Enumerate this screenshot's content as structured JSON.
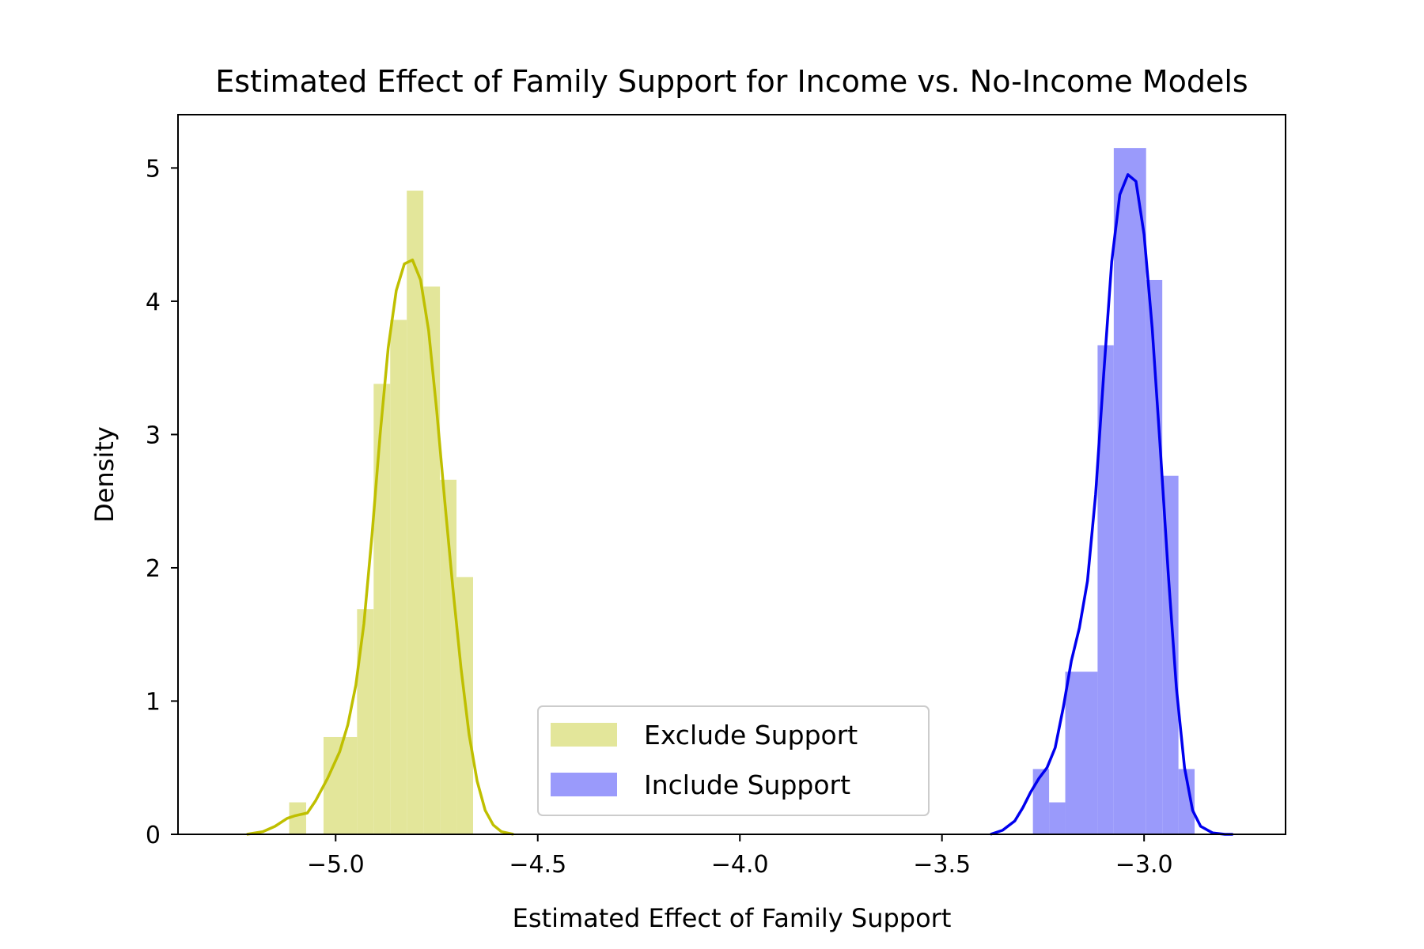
{
  "chart_data": {
    "type": "histogram",
    "title": "Estimated Effect of Family Support for Income vs. No-Income Models",
    "xlabel": "Estimated Effect of Family Support",
    "ylabel": "Density",
    "xlim": [
      -5.39,
      -2.65
    ],
    "ylim": [
      0,
      5.4
    ],
    "x_ticks": [
      {
        "value": -5.0,
        "label": "−5.0"
      },
      {
        "value": -4.5,
        "label": "−4.5"
      },
      {
        "value": -4.0,
        "label": "−4.0"
      },
      {
        "value": -3.5,
        "label": "−3.5"
      },
      {
        "value": -3.0,
        "label": "−3.0"
      }
    ],
    "y_ticks": [
      {
        "value": 0,
        "label": "0"
      },
      {
        "value": 1,
        "label": "1"
      },
      {
        "value": 2,
        "label": "2"
      },
      {
        "value": 3,
        "label": "3"
      },
      {
        "value": 4,
        "label": "4"
      },
      {
        "value": 5,
        "label": "5"
      }
    ],
    "grid": false,
    "legend_position": "bottom-center",
    "series": [
      {
        "name": "Exclude Support",
        "bar_color": "#e3e69a",
        "line_color": "#bfbf00",
        "bins": [
          {
            "x0": -5.115,
            "x1": -5.073,
            "density": 0.24
          },
          {
            "x0": -5.073,
            "x1": -5.03,
            "density": 0.0
          },
          {
            "x0": -5.03,
            "x1": -4.947,
            "density": 0.73
          },
          {
            "x0": -4.947,
            "x1": -4.906,
            "density": 1.69
          },
          {
            "x0": -4.906,
            "x1": -4.865,
            "density": 3.38
          },
          {
            "x0": -4.865,
            "x1": -4.824,
            "density": 3.86
          },
          {
            "x0": -4.824,
            "x1": -4.783,
            "density": 4.83
          },
          {
            "x0": -4.783,
            "x1": -4.742,
            "density": 4.11
          },
          {
            "x0": -4.742,
            "x1": -4.701,
            "density": 2.66
          },
          {
            "x0": -4.701,
            "x1": -4.66,
            "density": 1.93
          }
        ],
        "kde": [
          [
            -5.22,
            0.0
          ],
          [
            -5.18,
            0.02
          ],
          [
            -5.15,
            0.06
          ],
          [
            -5.12,
            0.12
          ],
          [
            -5.1,
            0.14
          ],
          [
            -5.07,
            0.16
          ],
          [
            -5.05,
            0.25
          ],
          [
            -5.02,
            0.42
          ],
          [
            -4.99,
            0.62
          ],
          [
            -4.97,
            0.82
          ],
          [
            -4.95,
            1.12
          ],
          [
            -4.93,
            1.58
          ],
          [
            -4.91,
            2.25
          ],
          [
            -4.89,
            3.0
          ],
          [
            -4.87,
            3.65
          ],
          [
            -4.85,
            4.08
          ],
          [
            -4.83,
            4.28
          ],
          [
            -4.81,
            4.31
          ],
          [
            -4.79,
            4.16
          ],
          [
            -4.77,
            3.78
          ],
          [
            -4.75,
            3.18
          ],
          [
            -4.73,
            2.5
          ],
          [
            -4.71,
            1.85
          ],
          [
            -4.69,
            1.25
          ],
          [
            -4.67,
            0.75
          ],
          [
            -4.65,
            0.4
          ],
          [
            -4.63,
            0.18
          ],
          [
            -4.61,
            0.07
          ],
          [
            -4.59,
            0.02
          ],
          [
            -4.56,
            0.0
          ]
        ]
      },
      {
        "name": "Include Support",
        "bar_color": "#9a9afb",
        "line_color": "#0000ee",
        "bins": [
          {
            "x0": -3.275,
            "x1": -3.235,
            "density": 0.49
          },
          {
            "x0": -3.235,
            "x1": -3.195,
            "density": 0.24
          },
          {
            "x0": -3.195,
            "x1": -3.115,
            "density": 1.22
          },
          {
            "x0": -3.115,
            "x1": -3.075,
            "density": 3.67
          },
          {
            "x0": -3.075,
            "x1": -2.995,
            "density": 5.15
          },
          {
            "x0": -2.995,
            "x1": -2.955,
            "density": 4.16
          },
          {
            "x0": -2.955,
            "x1": -2.915,
            "density": 2.69
          },
          {
            "x0": -2.915,
            "x1": -2.875,
            "density": 0.49
          }
        ],
        "kde": [
          [
            -3.38,
            0.0
          ],
          [
            -3.35,
            0.03
          ],
          [
            -3.32,
            0.1
          ],
          [
            -3.3,
            0.2
          ],
          [
            -3.28,
            0.32
          ],
          [
            -3.26,
            0.42
          ],
          [
            -3.24,
            0.5
          ],
          [
            -3.22,
            0.65
          ],
          [
            -3.2,
            0.95
          ],
          [
            -3.18,
            1.3
          ],
          [
            -3.16,
            1.55
          ],
          [
            -3.14,
            1.9
          ],
          [
            -3.12,
            2.55
          ],
          [
            -3.1,
            3.45
          ],
          [
            -3.08,
            4.3
          ],
          [
            -3.06,
            4.8
          ],
          [
            -3.04,
            4.95
          ],
          [
            -3.02,
            4.9
          ],
          [
            -3.0,
            4.5
          ],
          [
            -2.98,
            3.8
          ],
          [
            -2.96,
            2.9
          ],
          [
            -2.94,
            1.95
          ],
          [
            -2.92,
            1.1
          ],
          [
            -2.9,
            0.5
          ],
          [
            -2.88,
            0.18
          ],
          [
            -2.86,
            0.06
          ],
          [
            -2.83,
            0.01
          ],
          [
            -2.8,
            0.0
          ],
          [
            -2.78,
            0.0
          ]
        ]
      }
    ]
  }
}
